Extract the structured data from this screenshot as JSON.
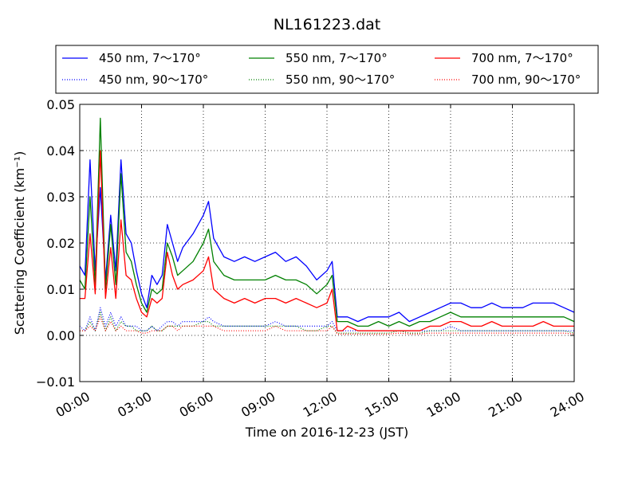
{
  "chart_data": {
    "type": "line",
    "title": "NL161223.dat",
    "xlabel": "Time on 2016-12-23 (JST)",
    "ylabel": "Scattering Coefficient (km⁻¹)",
    "xlim": [
      0,
      24
    ],
    "ylim": [
      -0.01,
      0.05
    ],
    "grid": true,
    "legend_position": "top (above plot, 3 columns)",
    "x_ticks": [
      0,
      3,
      6,
      9,
      12,
      15,
      18,
      21,
      24
    ],
    "x_tick_labels": [
      "00:00",
      "03:00",
      "06:00",
      "09:00",
      "12:00",
      "15:00",
      "18:00",
      "21:00",
      "24:00"
    ],
    "y_ticks": [
      -0.01,
      0.0,
      0.01,
      0.02,
      0.03,
      0.04,
      0.05
    ],
    "y_tick_labels": [
      "−0.01",
      "0.00",
      "0.01",
      "0.02",
      "0.03",
      "0.04",
      "0.05"
    ],
    "x": [
      0.0,
      0.25,
      0.5,
      0.75,
      1.0,
      1.25,
      1.5,
      1.75,
      2.0,
      2.25,
      2.5,
      2.75,
      3.0,
      3.25,
      3.5,
      3.75,
      4.0,
      4.25,
      4.5,
      4.75,
      5.0,
      5.5,
      6.0,
      6.25,
      6.5,
      7.0,
      7.5,
      8.0,
      8.5,
      9.0,
      9.5,
      10.0,
      10.5,
      11.0,
      11.5,
      12.0,
      12.25,
      12.5,
      12.75,
      13.0,
      13.5,
      14.0,
      14.5,
      15.0,
      15.5,
      16.0,
      16.5,
      17.0,
      17.5,
      18.0,
      18.5,
      19.0,
      19.5,
      20.0,
      20.5,
      21.0,
      21.5,
      22.0,
      22.5,
      23.0,
      23.5,
      24.0
    ],
    "series": [
      {
        "name": "450 nm, 7～170°",
        "color": "#0000ff",
        "style": "solid",
        "values": [
          0.015,
          0.013,
          0.038,
          0.014,
          0.032,
          0.012,
          0.026,
          0.014,
          0.038,
          0.022,
          0.02,
          0.014,
          0.009,
          0.006,
          0.013,
          0.011,
          0.013,
          0.024,
          0.02,
          0.016,
          0.019,
          0.022,
          0.026,
          0.029,
          0.021,
          0.017,
          0.016,
          0.017,
          0.016,
          0.017,
          0.018,
          0.016,
          0.017,
          0.015,
          0.012,
          0.014,
          0.016,
          0.004,
          0.004,
          0.004,
          0.003,
          0.004,
          0.004,
          0.004,
          0.005,
          0.003,
          0.004,
          0.005,
          0.006,
          0.007,
          0.007,
          0.006,
          0.006,
          0.007,
          0.006,
          0.006,
          0.006,
          0.007,
          0.007,
          0.007,
          0.006,
          0.005
        ]
      },
      {
        "name": "450 nm, 90～170°",
        "color": "#0000ff",
        "style": "dotted",
        "values": [
          0.002,
          0.001,
          0.004,
          0.001,
          0.006,
          0.002,
          0.005,
          0.002,
          0.004,
          0.002,
          0.002,
          0.002,
          0.001,
          0.001,
          0.002,
          0.001,
          0.002,
          0.003,
          0.003,
          0.002,
          0.003,
          0.003,
          0.003,
          0.004,
          0.003,
          0.002,
          0.002,
          0.002,
          0.002,
          0.002,
          0.003,
          0.002,
          0.002,
          0.002,
          0.002,
          0.002,
          0.003,
          0.001,
          0.001,
          0.001,
          0.001,
          0.001,
          0.001,
          0.001,
          0.001,
          0.001,
          0.001,
          0.001,
          0.001,
          0.002,
          0.001,
          0.001,
          0.001,
          0.001,
          0.001,
          0.001,
          0.001,
          0.001,
          0.001,
          0.001,
          0.001,
          0.001
        ]
      },
      {
        "name": "550 nm, 7～170°",
        "color": "#008000",
        "style": "solid",
        "values": [
          0.012,
          0.01,
          0.03,
          0.011,
          0.047,
          0.01,
          0.024,
          0.011,
          0.035,
          0.018,
          0.016,
          0.011,
          0.007,
          0.005,
          0.01,
          0.009,
          0.01,
          0.02,
          0.017,
          0.013,
          0.014,
          0.016,
          0.02,
          0.023,
          0.016,
          0.013,
          0.012,
          0.012,
          0.012,
          0.012,
          0.013,
          0.012,
          0.012,
          0.011,
          0.009,
          0.011,
          0.013,
          0.003,
          0.003,
          0.003,
          0.002,
          0.002,
          0.003,
          0.002,
          0.003,
          0.002,
          0.003,
          0.003,
          0.004,
          0.005,
          0.004,
          0.004,
          0.004,
          0.004,
          0.004,
          0.004,
          0.004,
          0.004,
          0.004,
          0.004,
          0.004,
          0.003
        ]
      },
      {
        "name": "550 nm, 90～170°",
        "color": "#008000",
        "style": "dotted",
        "values": [
          0.001,
          0.001,
          0.003,
          0.001,
          0.005,
          0.001,
          0.004,
          0.001,
          0.003,
          0.002,
          0.002,
          0.001,
          0.001,
          0.001,
          0.002,
          0.001,
          0.001,
          0.002,
          0.002,
          0.002,
          0.002,
          0.002,
          0.003,
          0.003,
          0.002,
          0.002,
          0.002,
          0.002,
          0.002,
          0.002,
          0.002,
          0.002,
          0.002,
          0.001,
          0.001,
          0.002,
          0.002,
          0.0005,
          0.0005,
          0.0005,
          0.0005,
          0.0005,
          0.0005,
          0.0005,
          0.001,
          0.0005,
          0.0005,
          0.001,
          0.001,
          0.001,
          0.001,
          0.001,
          0.001,
          0.001,
          0.001,
          0.001,
          0.001,
          0.001,
          0.001,
          0.001,
          0.001,
          0.0005
        ]
      },
      {
        "name": "700 nm, 7～170°",
        "color": "#ff0000",
        "style": "solid",
        "values": [
          0.008,
          0.008,
          0.022,
          0.009,
          0.04,
          0.008,
          0.019,
          0.008,
          0.025,
          0.013,
          0.012,
          0.008,
          0.005,
          0.004,
          0.008,
          0.007,
          0.008,
          0.018,
          0.013,
          0.01,
          0.011,
          0.012,
          0.014,
          0.017,
          0.01,
          0.008,
          0.007,
          0.008,
          0.007,
          0.008,
          0.008,
          0.007,
          0.008,
          0.007,
          0.006,
          0.007,
          0.01,
          0.001,
          0.001,
          0.002,
          0.001,
          0.001,
          0.001,
          0.001,
          0.001,
          0.001,
          0.001,
          0.002,
          0.002,
          0.003,
          0.003,
          0.002,
          0.002,
          0.003,
          0.002,
          0.002,
          0.002,
          0.002,
          0.003,
          0.002,
          0.002,
          0.002
        ]
      },
      {
        "name": "700 nm, 90～170°",
        "color": "#ff0000",
        "style": "dotted",
        "values": [
          0.001,
          0.001,
          0.002,
          0.001,
          0.004,
          0.001,
          0.003,
          0.001,
          0.002,
          0.001,
          0.001,
          0.001,
          0.0005,
          0.0005,
          0.001,
          0.001,
          0.001,
          0.002,
          0.002,
          0.001,
          0.002,
          0.002,
          0.002,
          0.002,
          0.002,
          0.001,
          0.001,
          0.001,
          0.001,
          0.001,
          0.002,
          0.001,
          0.001,
          0.001,
          0.001,
          0.001,
          0.002,
          0.0003,
          0.0003,
          0.0003,
          0.0003,
          0.0003,
          0.0003,
          0.0003,
          0.0005,
          0.0003,
          0.0003,
          0.0005,
          0.0005,
          0.0005,
          0.0005,
          0.0005,
          0.0005,
          0.0005,
          0.0005,
          0.0005,
          0.0005,
          0.0005,
          0.0005,
          0.0005,
          0.0005,
          0.0003
        ]
      }
    ]
  }
}
